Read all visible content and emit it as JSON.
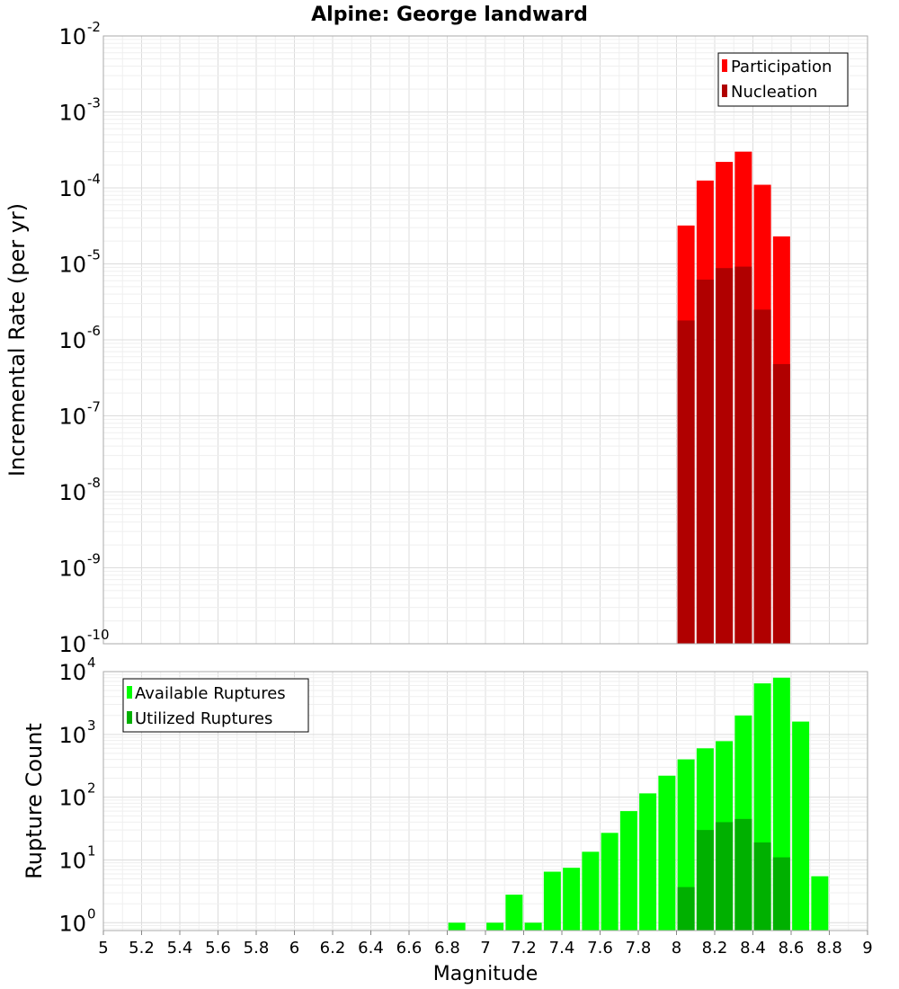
{
  "chart_data": [
    {
      "type": "bar",
      "title": "Alpine: George landward",
      "xlabel": "Magnitude",
      "ylabel": "Incremental Rate (per yr)",
      "yscale": "log",
      "ylim": [
        1e-10,
        0.01
      ],
      "xlim": [
        5,
        9
      ],
      "y_tick_exponents": [
        -10,
        -9,
        -8,
        -7,
        -6,
        -5,
        -4,
        -3,
        -2
      ],
      "legend_position": "top-right",
      "grid": true,
      "x": [
        8.05,
        8.15,
        8.25,
        8.35,
        8.45,
        8.55
      ],
      "series": [
        {
          "name": "Participation",
          "color": "#ff0000",
          "values": [
            3.2e-05,
            0.000125,
            0.00022,
            0.0003,
            0.00011,
            2.3e-05
          ]
        },
        {
          "name": "Nucleation",
          "color": "#b00000",
          "values": [
            1.8e-06,
            6.2e-06,
            8.8e-06,
            9.2e-06,
            2.5e-06,
            4.8e-07
          ]
        }
      ]
    },
    {
      "type": "bar",
      "xlabel": "Magnitude",
      "ylabel": "Rupture Count",
      "yscale": "log",
      "ylim": [
        0.75,
        10000
      ],
      "xlim": [
        5,
        9
      ],
      "y_tick_exponents": [
        0,
        1,
        2,
        3,
        4
      ],
      "x_ticks": [
        "5",
        "5.2",
        "5.4",
        "5.6",
        "5.8",
        "6",
        "6.2",
        "6.4",
        "6.6",
        "6.8",
        "7",
        "7.2",
        "7.4",
        "7.6",
        "7.8",
        "8",
        "8.2",
        "8.4",
        "8.6",
        "8.8",
        "9"
      ],
      "legend_position": "top-left",
      "grid": true,
      "x": [
        6.85,
        7.05,
        7.15,
        7.25,
        7.35,
        7.45,
        7.55,
        7.65,
        7.75,
        7.85,
        7.95,
        8.05,
        8.15,
        8.25,
        8.35,
        8.45,
        8.55,
        8.65,
        8.75
      ],
      "series": [
        {
          "name": "Available Ruptures",
          "color": "#00ff00",
          "values": [
            1,
            1,
            2.8,
            1,
            6.5,
            7.5,
            13.5,
            27,
            60,
            115,
            220,
            400,
            600,
            780,
            2000,
            6500,
            8000,
            1600,
            5.5
          ]
        },
        {
          "name": "Utilized Ruptures",
          "color": "#00b000",
          "values": [
            null,
            null,
            null,
            null,
            null,
            null,
            null,
            null,
            null,
            null,
            null,
            3.7,
            30,
            40,
            45,
            19,
            11,
            null,
            null
          ]
        }
      ]
    }
  ]
}
